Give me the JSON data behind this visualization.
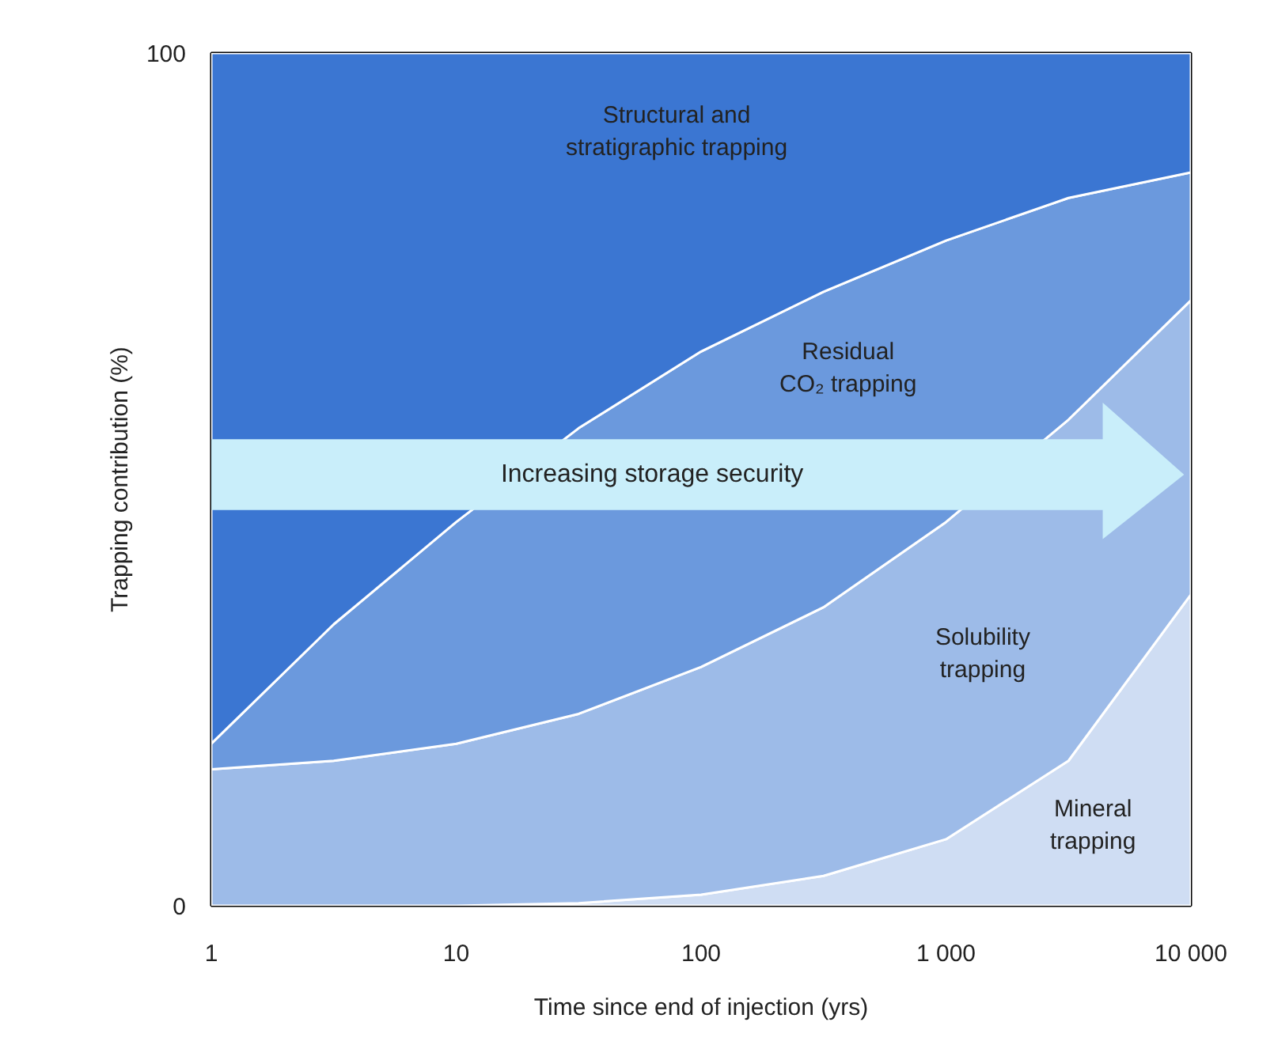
{
  "chart_data": {
    "type": "area",
    "stacked": true,
    "xlabel": "Time since end of injection (yrs)",
    "ylabel": "Trapping contribution (%)",
    "x": [
      1,
      3.16,
      10,
      31.6,
      100,
      316,
      1000,
      3162,
      10000
    ],
    "series": [
      {
        "name": "Mineral\ntrapping",
        "color": "#cfddf3",
        "values": [
          0,
          0,
          0,
          0.3,
          1.3,
          3.5,
          7.8,
          17,
          36.5
        ]
      },
      {
        "name": "Solubility\ntrapping",
        "color": "#9dbbe8",
        "values": [
          16,
          17,
          19,
          22.2,
          26.7,
          31.5,
          37.2,
          40,
          34.5
        ]
      },
      {
        "name": "Residual\nCO₂ trapping",
        "color": "#6b99dd",
        "values": [
          3,
          16,
          26,
          33.5,
          37,
          37,
          33,
          26,
          15
        ]
      },
      {
        "name": "Structural and\nstratigraphic trapping",
        "color": "#3b76d2",
        "values": [
          81,
          67,
          55,
          44,
          35,
          28,
          22,
          17,
          14
        ]
      }
    ],
    "log": "x",
    "xlim": [
      1,
      10000
    ],
    "ylim": [
      0,
      100
    ],
    "xticks": [
      1,
      10,
      100,
      {
        "value": 1000,
        "label": "1 000"
      },
      {
        "value": 10000,
        "label": "10 000"
      }
    ],
    "yticks": [
      0,
      100
    ],
    "annotations": [
      "Increasing storage security"
    ]
  }
}
